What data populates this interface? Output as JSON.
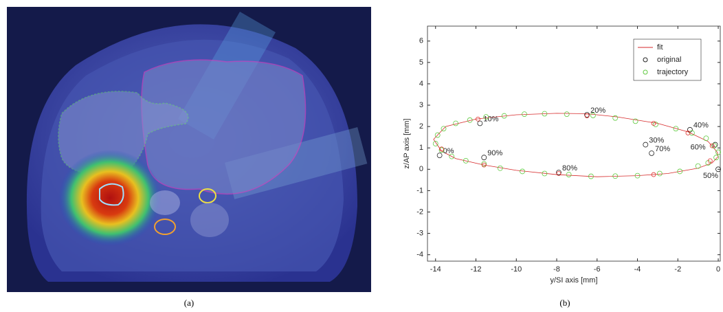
{
  "captions": [
    "(a)",
    "(b)"
  ],
  "chart_data": {
    "type": "scatter",
    "xlabel": "y/SI axis [mm]",
    "ylabel": "z/AP axis [mm]",
    "xlim": [
      -14.4,
      0.1
    ],
    "ylim": [
      -4.3,
      6.7
    ],
    "xticks": [
      -14,
      -12,
      -10,
      -8,
      -6,
      -4,
      -2,
      0
    ],
    "yticks": [
      -4,
      -3,
      -2,
      -1,
      0,
      1,
      2,
      3,
      4,
      5,
      6
    ],
    "legend": "upper right",
    "series": [
      {
        "name": "fit",
        "kind": "line",
        "color": "#d62728",
        "x": [
          -14.1,
          -13.5,
          -12,
          -10,
          -8,
          -6.5,
          -5,
          -3,
          -1.5,
          -0.5,
          -0.05,
          0,
          -0.3,
          -1,
          -2.5,
          -4,
          -6,
          -8,
          -10,
          -11.6,
          -13,
          -13.7,
          -14.1
        ],
        "values": [
          1.4,
          2.0,
          2.35,
          2.55,
          2.62,
          2.6,
          2.45,
          2.15,
          1.75,
          1.3,
          0.8,
          0.6,
          0.3,
          0.05,
          -0.2,
          -0.3,
          -0.35,
          -0.25,
          -0.05,
          0.2,
          0.5,
          0.85,
          1.4
        ]
      },
      {
        "name": "original",
        "kind": "marker",
        "color": "#222222",
        "x": [
          -13.8,
          -11.8,
          -6.5,
          -3.6,
          -1.4,
          0,
          -0.15,
          -3.3,
          -7.9,
          -11.6
        ],
        "values": [
          0.65,
          2.15,
          2.55,
          1.15,
          1.85,
          0,
          1.15,
          0.75,
          -0.15,
          0.55
        ],
        "labels": [
          "0%",
          "10%",
          "20%",
          "30%",
          "40%",
          "50%",
          "60%",
          "70%",
          "80%",
          "90%"
        ]
      },
      {
        "name": "trajectory",
        "kind": "marker",
        "color": "#5fc93f",
        "x": [
          -14.0,
          -13.9,
          -13.6,
          -13.0,
          -12.3,
          -11.5,
          -10.6,
          -9.6,
          -8.6,
          -7.5,
          -6.2,
          -5.1,
          -4.1,
          -3.1,
          -2.1,
          -1.3,
          -0.6,
          -0.2,
          0,
          -0.1,
          -0.5,
          -1.0,
          -1.9,
          -2.9,
          -4.0,
          -5.1,
          -6.3,
          -7.4,
          -8.6,
          -9.7,
          -10.8,
          -11.6,
          -12.5,
          -13.2,
          -13.7
        ],
        "values": [
          1.2,
          1.6,
          1.9,
          2.15,
          2.3,
          2.45,
          2.5,
          2.58,
          2.6,
          2.58,
          2.52,
          2.4,
          2.25,
          2.1,
          1.9,
          1.7,
          1.45,
          1.1,
          0.8,
          0.55,
          0.3,
          0.15,
          -0.1,
          -0.2,
          -0.3,
          -0.32,
          -0.33,
          -0.25,
          -0.2,
          -0.1,
          0.05,
          0.25,
          0.4,
          0.6,
          0.9
        ]
      },
      {
        "kind": "marker",
        "color": "#e0322d",
        "x": [
          -11.9,
          -6.5,
          -3.2,
          -1.5,
          -0.3,
          -0.4,
          -3.2,
          -7.9,
          -11.6,
          -13.7
        ],
        "values": [
          2.35,
          2.5,
          2.15,
          1.7,
          1.1,
          0.4,
          -0.25,
          -0.2,
          0.2,
          0.95
        ]
      }
    ]
  }
}
